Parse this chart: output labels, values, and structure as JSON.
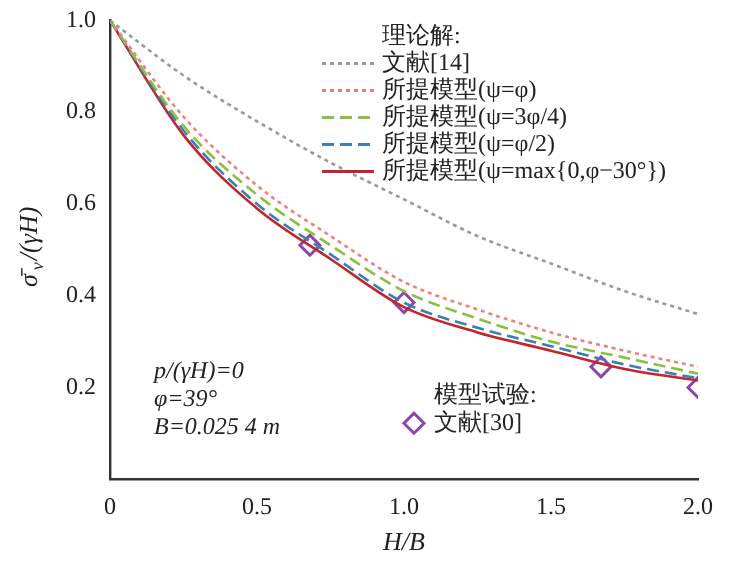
{
  "chart_data": {
    "type": "line",
    "xlabel": "H/B",
    "ylabel": "σ̄$_{v}$/(γH)",
    "legend_title": "理论解:",
    "annotations": [
      "p/(γH)=0",
      "φ=39°",
      "B=0.025 4 m",
      "模型试验:"
    ],
    "x": [
      0,
      0.25,
      0.5,
      0.75,
      1.0,
      1.25,
      1.5,
      1.75,
      2.0
    ],
    "series": [
      {
        "name": "文献[14]",
        "color": "#999999",
        "line_style": "dotted",
        "values": [
          1,
          0.88,
          0.78,
          0.69,
          0.61,
          0.53,
          0.47,
          0.41,
          0.36
        ]
      },
      {
        "name": "所提模型(ψ=φ)",
        "color": "#f08080",
        "line_style": "dotted",
        "values": [
          1,
          0.79,
          0.64,
          0.53,
          0.43,
          0.37,
          0.32,
          0.28,
          0.245
        ]
      },
      {
        "name": "所提模型(ψ=3φ/4)",
        "color": "#8cbf3f",
        "line_style": "dashed",
        "values": [
          1,
          0.77,
          0.62,
          0.51,
          0.41,
          0.35,
          0.3,
          0.265,
          0.23
        ]
      },
      {
        "name": "所提模型(ψ=φ/2)",
        "color": "#3b7fb5",
        "line_style": "dashed",
        "values": [
          1,
          0.76,
          0.6,
          0.49,
          0.385,
          0.33,
          0.29,
          0.25,
          0.22
        ]
      },
      {
        "name": "所提模型(ψ=max{0,φ−30°})",
        "color": "#c0262b",
        "line_style": "solid",
        "values": [
          1,
          0.75,
          0.59,
          0.48,
          0.375,
          0.32,
          0.28,
          0.24,
          0.215
        ]
      },
      {
        "name": "文献[30]",
        "type": "scatter",
        "marker": "diamond",
        "color": "#8e44ad",
        "x": [
          0.68,
          1.0,
          1.67,
          2.0
        ],
        "values": [
          0.51,
          0.385,
          0.245,
          0.2
        ]
      }
    ],
    "xlim": [
      0,
      2
    ],
    "xticks": [
      0,
      0.5,
      {
        "value": 1,
        "label": "1.0"
      },
      1.5,
      {
        "value": 2,
        "label": "2.0"
      }
    ],
    "ylim": [
      0,
      1
    ],
    "yticks": [
      0.2,
      0.4,
      0.6,
      0.8,
      {
        "value": 1,
        "label": "1.0"
      }
    ],
    "grid": false,
    "legend": "top right"
  }
}
